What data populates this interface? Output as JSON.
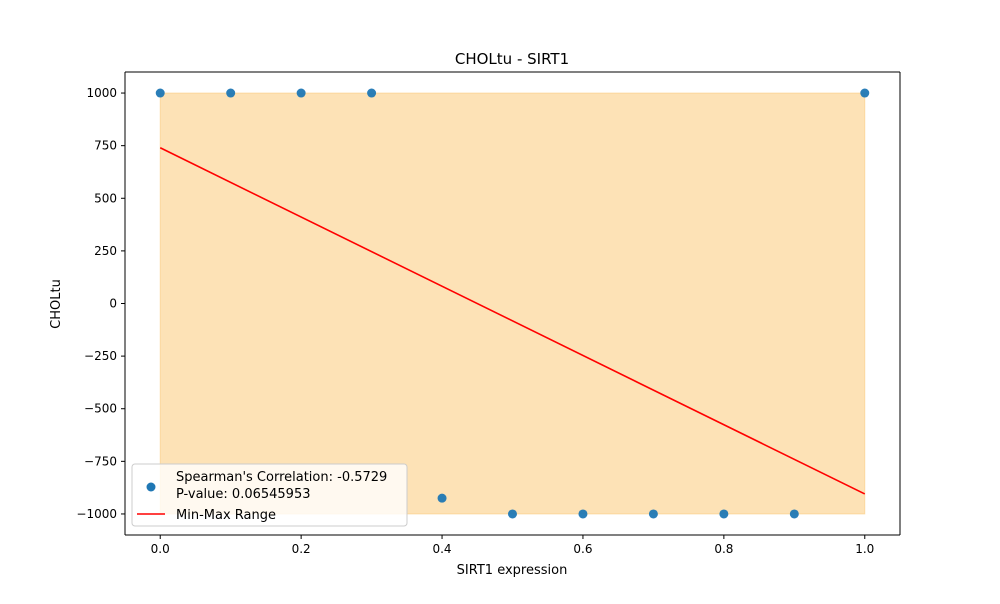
{
  "chart_data": {
    "type": "scatter",
    "title": "CHOLtu - SIRT1",
    "xlabel": "SIRT1 expression",
    "ylabel": "CHOLtu",
    "xlim": [
      -0.05,
      1.05
    ],
    "ylim": [
      -1100,
      1100
    ],
    "x_ticks": [
      0.0,
      0.2,
      0.4,
      0.6,
      0.8,
      1.0
    ],
    "x_tick_labels": [
      "0.0",
      "0.2",
      "0.4",
      "0.6",
      "0.8",
      "1.0"
    ],
    "y_ticks": [
      1000,
      750,
      500,
      250,
      0,
      -250,
      -500,
      -750,
      -1000
    ],
    "y_tick_labels": [
      "1000",
      "750",
      "500",
      "250",
      "0",
      "−250",
      "−500",
      "−750",
      "−1000"
    ],
    "grid": false,
    "legend_position": "lower-left",
    "points": {
      "x": [
        0.0,
        0.1,
        0.2,
        0.3,
        0.4,
        0.5,
        0.6,
        0.7,
        0.8,
        0.9,
        1.0
      ],
      "y": [
        1000,
        1000,
        1000,
        1000,
        -925,
        -1000,
        -1000,
        -1000,
        -1000,
        -1000,
        1000
      ],
      "color": "#1f77b4"
    },
    "range_band": {
      "x": [
        0.0,
        1.0
      ],
      "y_min": -1000,
      "y_max": 1000,
      "color": "#fbc56d"
    },
    "trend_line": {
      "x": [
        0.0,
        1.0
      ],
      "y": [
        740,
        -905
      ],
      "color": "#ff0000"
    },
    "legend": [
      {
        "kind": "marker",
        "text": "Spearman's Correlation: -0.5729",
        "text2": "P-value: 0.06545953",
        "color": "#1f77b4"
      },
      {
        "kind": "line",
        "text": "Min-Max Range",
        "color": "#ff0000"
      }
    ]
  }
}
